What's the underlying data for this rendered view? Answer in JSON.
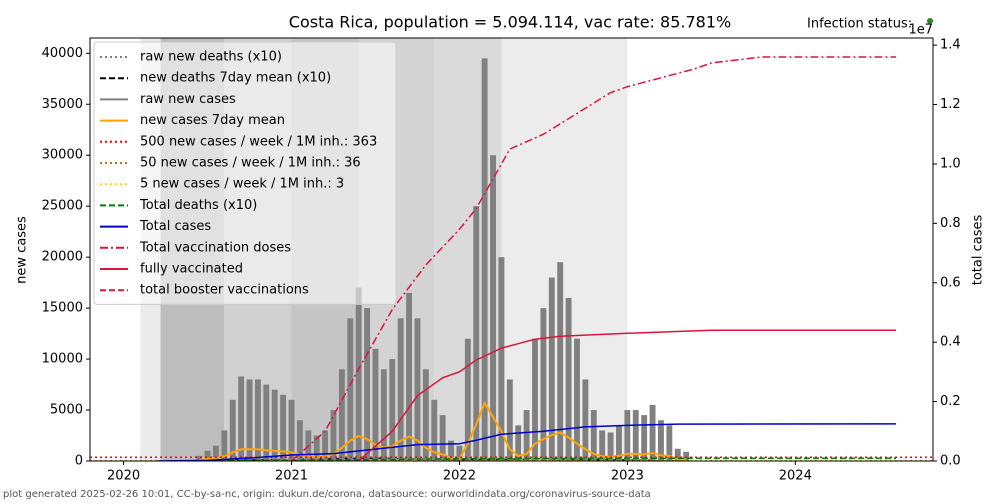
{
  "chart_data": {
    "type": "bar",
    "title": "Costa Rica, population = 5.094.114, vac rate: 85.781%",
    "status_label": "Infection status:",
    "status_color": "#228b22",
    "ylabel": "new cases",
    "y2label": "total cases",
    "y2offset": "1e7",
    "footer": "plot generated 2025-02-26 10:01, CC-by-sa-nc, origin: dukun.de/corona, datasource: ourworldindata.org/coronavirus-source-data",
    "xlim": [
      2019.8,
      2024.82
    ],
    "xticks": [
      2020,
      2021,
      2022,
      2023,
      2024
    ],
    "ylim": [
      0,
      41500
    ],
    "yticks": [
      0,
      5000,
      10000,
      15000,
      20000,
      25000,
      30000,
      35000,
      40000
    ],
    "y2lim": [
      0,
      1.424
    ],
    "y2ticks": [
      {
        "value": 0,
        "label": "0.0"
      },
      0.2,
      0.4,
      0.6,
      0.8,
      {
        "value": 1,
        "label": "1.0"
      },
      1.2,
      1.4
    ],
    "legend": "upper left",
    "bands": [
      {
        "start": 2020.1,
        "end": 2020.22,
        "color": "#ebebeb"
      },
      {
        "start": 2020.22,
        "end": 2020.6,
        "color": "#bdbdbd"
      },
      {
        "start": 2020.6,
        "end": 2021.0,
        "color": "#d0d0d0"
      },
      {
        "start": 2021.0,
        "end": 2021.4,
        "color": "#c6c6c6"
      },
      {
        "start": 2021.4,
        "end": 2021.85,
        "color": "#d3d3d3"
      },
      {
        "start": 2021.85,
        "end": 2022.25,
        "color": "#dadada"
      },
      {
        "start": 2022.25,
        "end": 2023.0,
        "color": "#ececec"
      }
    ],
    "series": [
      {
        "name": "raw new deaths (x10)",
        "type": "line",
        "color": "#808080",
        "style": "dotted",
        "x": [
          2020.5,
          2021,
          2021.5,
          2022,
          2022.5,
          2023,
          2023.35
        ],
        "values": [
          50,
          200,
          300,
          150,
          200,
          100,
          30
        ]
      },
      {
        "name": "new deaths 7day mean (x10)",
        "type": "line",
        "color": "#000000",
        "style": "dashed",
        "x": [
          2020.5,
          2021,
          2021.5,
          2022,
          2022.5,
          2023,
          2023.35
        ],
        "values": [
          40,
          180,
          260,
          140,
          180,
          90,
          30
        ]
      },
      {
        "name": "raw new cases",
        "type": "bar",
        "color": "#808080",
        "style": "solid",
        "x": [
          2020.45,
          2020.5,
          2020.55,
          2020.6,
          2020.65,
          2020.7,
          2020.75,
          2020.8,
          2020.85,
          2020.9,
          2020.95,
          2021,
          2021.05,
          2021.1,
          2021.15,
          2021.2,
          2021.25,
          2021.3,
          2021.35,
          2021.4,
          2021.45,
          2021.5,
          2021.55,
          2021.6,
          2021.65,
          2021.7,
          2021.75,
          2021.8,
          2021.85,
          2021.9,
          2021.95,
          2022,
          2022.05,
          2022.1,
          2022.15,
          2022.2,
          2022.25,
          2022.3,
          2022.35,
          2022.4,
          2022.45,
          2022.5,
          2022.55,
          2022.6,
          2022.65,
          2022.7,
          2022.75,
          2022.8,
          2022.85,
          2022.9,
          2022.95,
          2023,
          2023.05,
          2023.1,
          2023.15,
          2023.2,
          2023.25,
          2023.3,
          2023.35
        ],
        "values": [
          500,
          1000,
          1500,
          3000,
          6000,
          8300,
          8000,
          8000,
          7500,
          7000,
          6500,
          6000,
          4000,
          3000,
          2500,
          3000,
          5000,
          9000,
          14000,
          17000,
          15000,
          11000,
          9000,
          10000,
          14000,
          16500,
          14000,
          9000,
          6000,
          4500,
          2000,
          1500,
          12000,
          25000,
          39500,
          30000,
          20000,
          8000,
          3500,
          5000,
          12000,
          15000,
          18000,
          19500,
          16000,
          12000,
          8000,
          5000,
          3000,
          2800,
          3500,
          5000,
          5000,
          4500,
          5500,
          4000,
          3500,
          1200,
          900
        ]
      },
      {
        "name": "new cases 7day mean",
        "type": "line",
        "color": "#ffa500",
        "style": "solid",
        "width": 2,
        "x": [
          2020.45,
          2020.5,
          2020.55,
          2020.6,
          2020.65,
          2020.7,
          2020.75,
          2020.8,
          2020.85,
          2020.9,
          2020.95,
          2021,
          2021.05,
          2021.1,
          2021.15,
          2021.2,
          2021.25,
          2021.3,
          2021.35,
          2021.4,
          2021.45,
          2021.5,
          2021.55,
          2021.6,
          2021.65,
          2021.7,
          2021.75,
          2021.8,
          2021.85,
          2021.9,
          2021.95,
          2022,
          2022.05,
          2022.1,
          2022.15,
          2022.2,
          2022.25,
          2022.3,
          2022.35,
          2022.4,
          2022.45,
          2022.5,
          2022.55,
          2022.6,
          2022.65,
          2022.7,
          2022.75,
          2022.8,
          2022.85,
          2022.9,
          2022.95,
          2023,
          2023.05,
          2023.1,
          2023.15,
          2023.2,
          2023.25,
          2023.3,
          2023.35
        ],
        "values": [
          100,
          200,
          300,
          450,
          850,
          1150,
          1150,
          1150,
          1050,
          1000,
          950,
          850,
          600,
          450,
          350,
          450,
          700,
          1300,
          2000,
          2450,
          2150,
          1600,
          1300,
          1450,
          2000,
          2400,
          2000,
          1300,
          850,
          650,
          300,
          200,
          1700,
          3600,
          5700,
          4300,
          2900,
          1150,
          500,
          700,
          1700,
          2150,
          2550,
          2800,
          2300,
          1700,
          1150,
          700,
          450,
          400,
          500,
          700,
          700,
          650,
          800,
          550,
          500,
          170,
          130
        ]
      },
      {
        "name": "500 new cases / week / 1M inh.: 363",
        "type": "hline",
        "color": "#ff0000",
        "style": "dotted",
        "value": 363
      },
      {
        "name": "50 new cases / week / 1M inh.: 36",
        "type": "hline",
        "color": "#d2691e",
        "style": "dotted",
        "value": 36
      },
      {
        "name": "5 new cases / week / 1M inh.: 3",
        "type": "hline",
        "color": "#ffd700",
        "style": "dotted",
        "value": 3
      },
      {
        "name": "Total deaths (x10)",
        "type": "line",
        "axis": "y2",
        "color": "#008000",
        "style": "dashed",
        "x": [
          2020.3,
          2021.0,
          2021.5,
          2022.0,
          2022.5,
          2023.0,
          2024.6
        ],
        "values": [
          0,
          0.0025,
          0.005,
          0.0075,
          0.0085,
          0.009,
          0.0093
        ]
      },
      {
        "name": "Total cases",
        "type": "line",
        "axis": "y2",
        "color": "#0000cd",
        "style": "solid",
        "x": [
          2020.2,
          2020.5,
          2020.75,
          2021,
          2021.25,
          2021.5,
          2021.75,
          2022,
          2022.1,
          2022.25,
          2022.5,
          2022.75,
          2023,
          2023.3,
          2024.6
        ],
        "values": [
          0,
          0.002,
          0.01,
          0.02,
          0.025,
          0.04,
          0.055,
          0.058,
          0.07,
          0.09,
          0.1,
          0.115,
          0.12,
          0.124,
          0.125
        ]
      },
      {
        "name": "Total vaccination doses",
        "type": "line",
        "axis": "y2",
        "color": "#dc143c",
        "style": "dashdot",
        "x": [
          2021.0,
          2021.2,
          2021.4,
          2021.6,
          2021.8,
          2022.0,
          2022.1,
          2022.3,
          2022.5,
          2022.7,
          2022.9,
          2023.0,
          2023.2,
          2023.4,
          2023.5,
          2023.8,
          2024.6
        ],
        "values": [
          0,
          0.1,
          0.31,
          0.51,
          0.66,
          0.78,
          0.85,
          1.05,
          1.1,
          1.17,
          1.24,
          1.26,
          1.29,
          1.32,
          1.34,
          1.36,
          1.36
        ]
      },
      {
        "name": "fully vaccinated",
        "type": "line",
        "axis": "y2",
        "color": "#dc143c",
        "style": "solid",
        "x": [
          2021.4,
          2021.6,
          2021.75,
          2021.9,
          2022.0,
          2022.1,
          2022.25,
          2022.45,
          2022.6,
          2023.0,
          2023.5,
          2024.6
        ],
        "values": [
          0,
          0.1,
          0.22,
          0.28,
          0.3,
          0.34,
          0.38,
          0.41,
          0.42,
          0.43,
          0.44,
          0.44
        ]
      },
      {
        "name": "total booster vaccinations",
        "type": "line",
        "axis": "y2",
        "color": "#dc143c",
        "style": "dashed",
        "x": [],
        "values": []
      }
    ]
  }
}
